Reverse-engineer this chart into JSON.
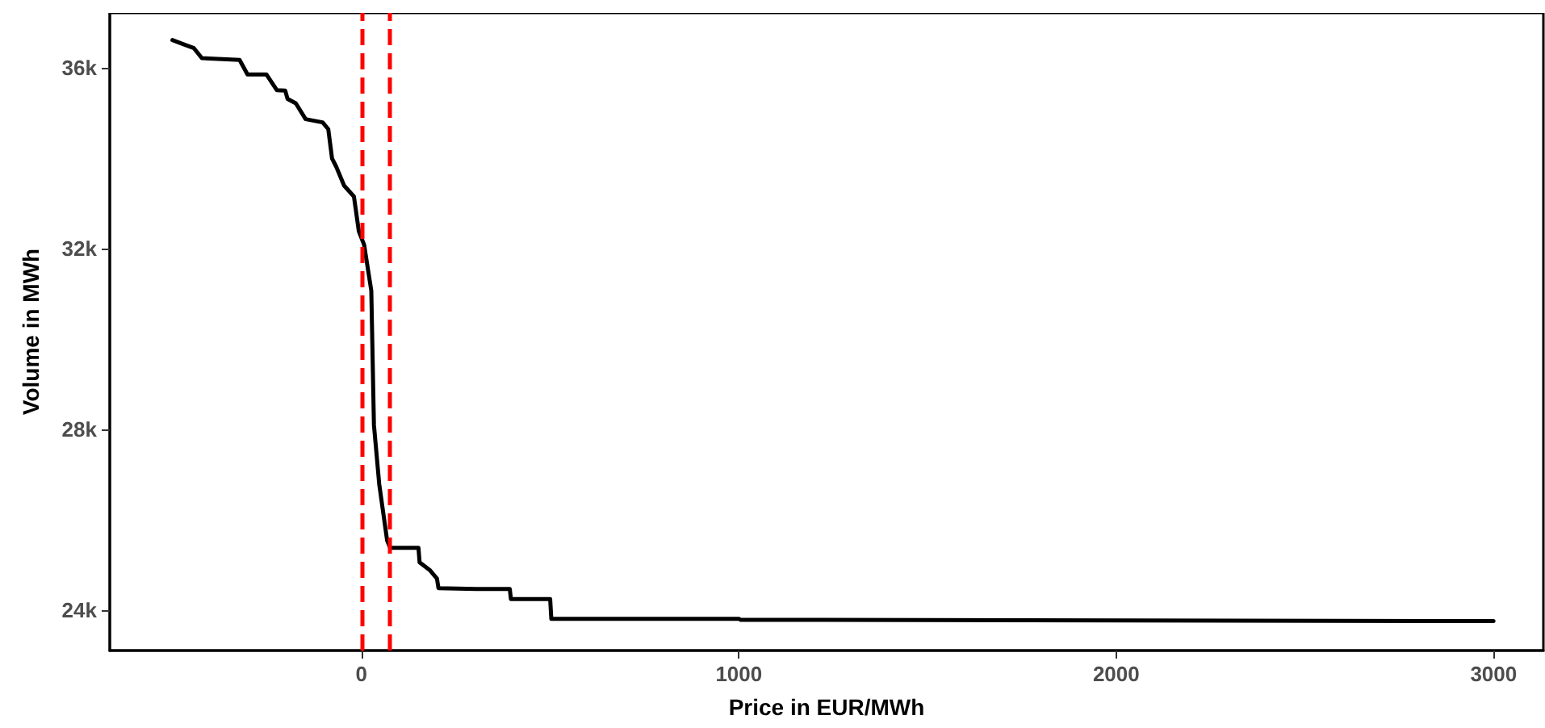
{
  "chart_data": {
    "type": "line",
    "xlabel": "Price in EUR/MWh",
    "ylabel": "Volume in MWh",
    "x": [
      -501,
      -473,
      -444,
      -423,
      -323,
      -302,
      -252,
      -224,
      -202,
      -196,
      -174,
      -148,
      -103,
      -88,
      -78,
      -67,
      -46,
      -20,
      -7,
      7,
      26,
      33,
      47,
      68,
      76,
      151,
      154,
      182,
      200,
      204,
      303,
      393,
      396,
      500,
      503,
      1000,
      1005,
      3000
    ],
    "series": [
      {
        "color": "#000000",
        "values": [
          36610,
          36520,
          36430,
          36210,
          36170,
          35850,
          35850,
          35500,
          35490,
          35310,
          35210,
          34860,
          34790,
          34640,
          33990,
          33810,
          33390,
          33150,
          32380,
          32080,
          31070,
          28100,
          26790,
          25540,
          25380,
          25380,
          25060,
          24880,
          24700,
          24490,
          24470,
          24470,
          24250,
          24250,
          23810,
          23810,
          23790,
          23760
        ]
      }
    ],
    "xlim": [
      -667,
      3132
    ],
    "ylim": [
      23110,
      37210
    ],
    "xticks": [
      0,
      1000,
      2000,
      3000
    ],
    "yticks": [
      {
        "value": 24000,
        "label": "24k"
      },
      {
        "value": 28000,
        "label": "28k"
      },
      {
        "value": 32000,
        "label": "32k"
      },
      {
        "value": 36000,
        "label": "36k"
      }
    ],
    "ref_lines": [
      {
        "axis": "x",
        "value": 0,
        "color": "#ff0000",
        "line_style": "dashed"
      },
      {
        "axis": "x",
        "value": 73,
        "color": "#ff0000",
        "line_style": "dashed"
      }
    ],
    "grid": false,
    "marker": "none",
    "line_style": "solid"
  }
}
